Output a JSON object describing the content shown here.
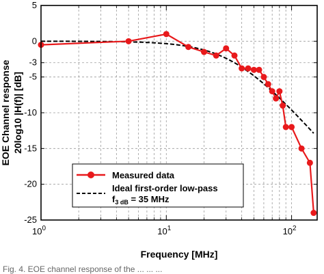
{
  "chart_data": {
    "type": "line",
    "xscale": "log",
    "xlim": [
      1,
      160
    ],
    "ylim": [
      -25,
      5
    ],
    "grid": true,
    "legend_position": "bottom-left",
    "xlabel": "Frequency [MHz]",
    "ylabel_line1": "EOE Channel response",
    "ylabel_line2": "20log10 |H(f)| [dB]",
    "x_ticks": [
      {
        "value": 1,
        "base": "10",
        "exp": "0"
      },
      {
        "value": 10,
        "base": "10",
        "exp": "1"
      },
      {
        "value": 100,
        "base": "10",
        "exp": "2"
      }
    ],
    "y_ticks": [
      {
        "value": 5,
        "label": "5"
      },
      {
        "value": 0,
        "label": "0"
      },
      {
        "value": -3,
        "label": "-3"
      },
      {
        "value": -5,
        "label": "-5"
      },
      {
        "value": -10,
        "label": "-10"
      },
      {
        "value": -15,
        "label": "-15"
      },
      {
        "value": -20,
        "label": "-20"
      },
      {
        "value": -25,
        "label": "-25"
      }
    ],
    "series": [
      {
        "name": "Measured data",
        "color": "#e8191b",
        "style": "solid-with-circle-markers",
        "x": [
          1,
          5,
          10,
          15,
          20,
          25,
          30,
          35,
          40,
          45,
          50,
          55,
          60,
          65,
          70,
          75,
          80,
          85,
          90,
          100,
          120,
          140,
          150
        ],
        "y": [
          -0.5,
          0,
          1,
          -0.8,
          -1.5,
          -2.0,
          -1.0,
          -2.0,
          -3.8,
          -3.8,
          -4.0,
          -4.0,
          -5.0,
          -6.0,
          -7.0,
          -8.0,
          -7.0,
          -9.0,
          -12.0,
          -12.0,
          -15.0,
          -17.0,
          -24.0
        ]
      },
      {
        "name_line1": "Ideal first-order low-pass",
        "name_line2_prefix": "f",
        "name_line2_sub": "3 dB",
        "name_line2_suffix": " = 35 MHz",
        "color": "#000000",
        "style": "dashed",
        "cutoff_mhz": 35
      }
    ]
  },
  "caption_fragment": "Fig. 4. EOE channel response of the ... ... ..."
}
